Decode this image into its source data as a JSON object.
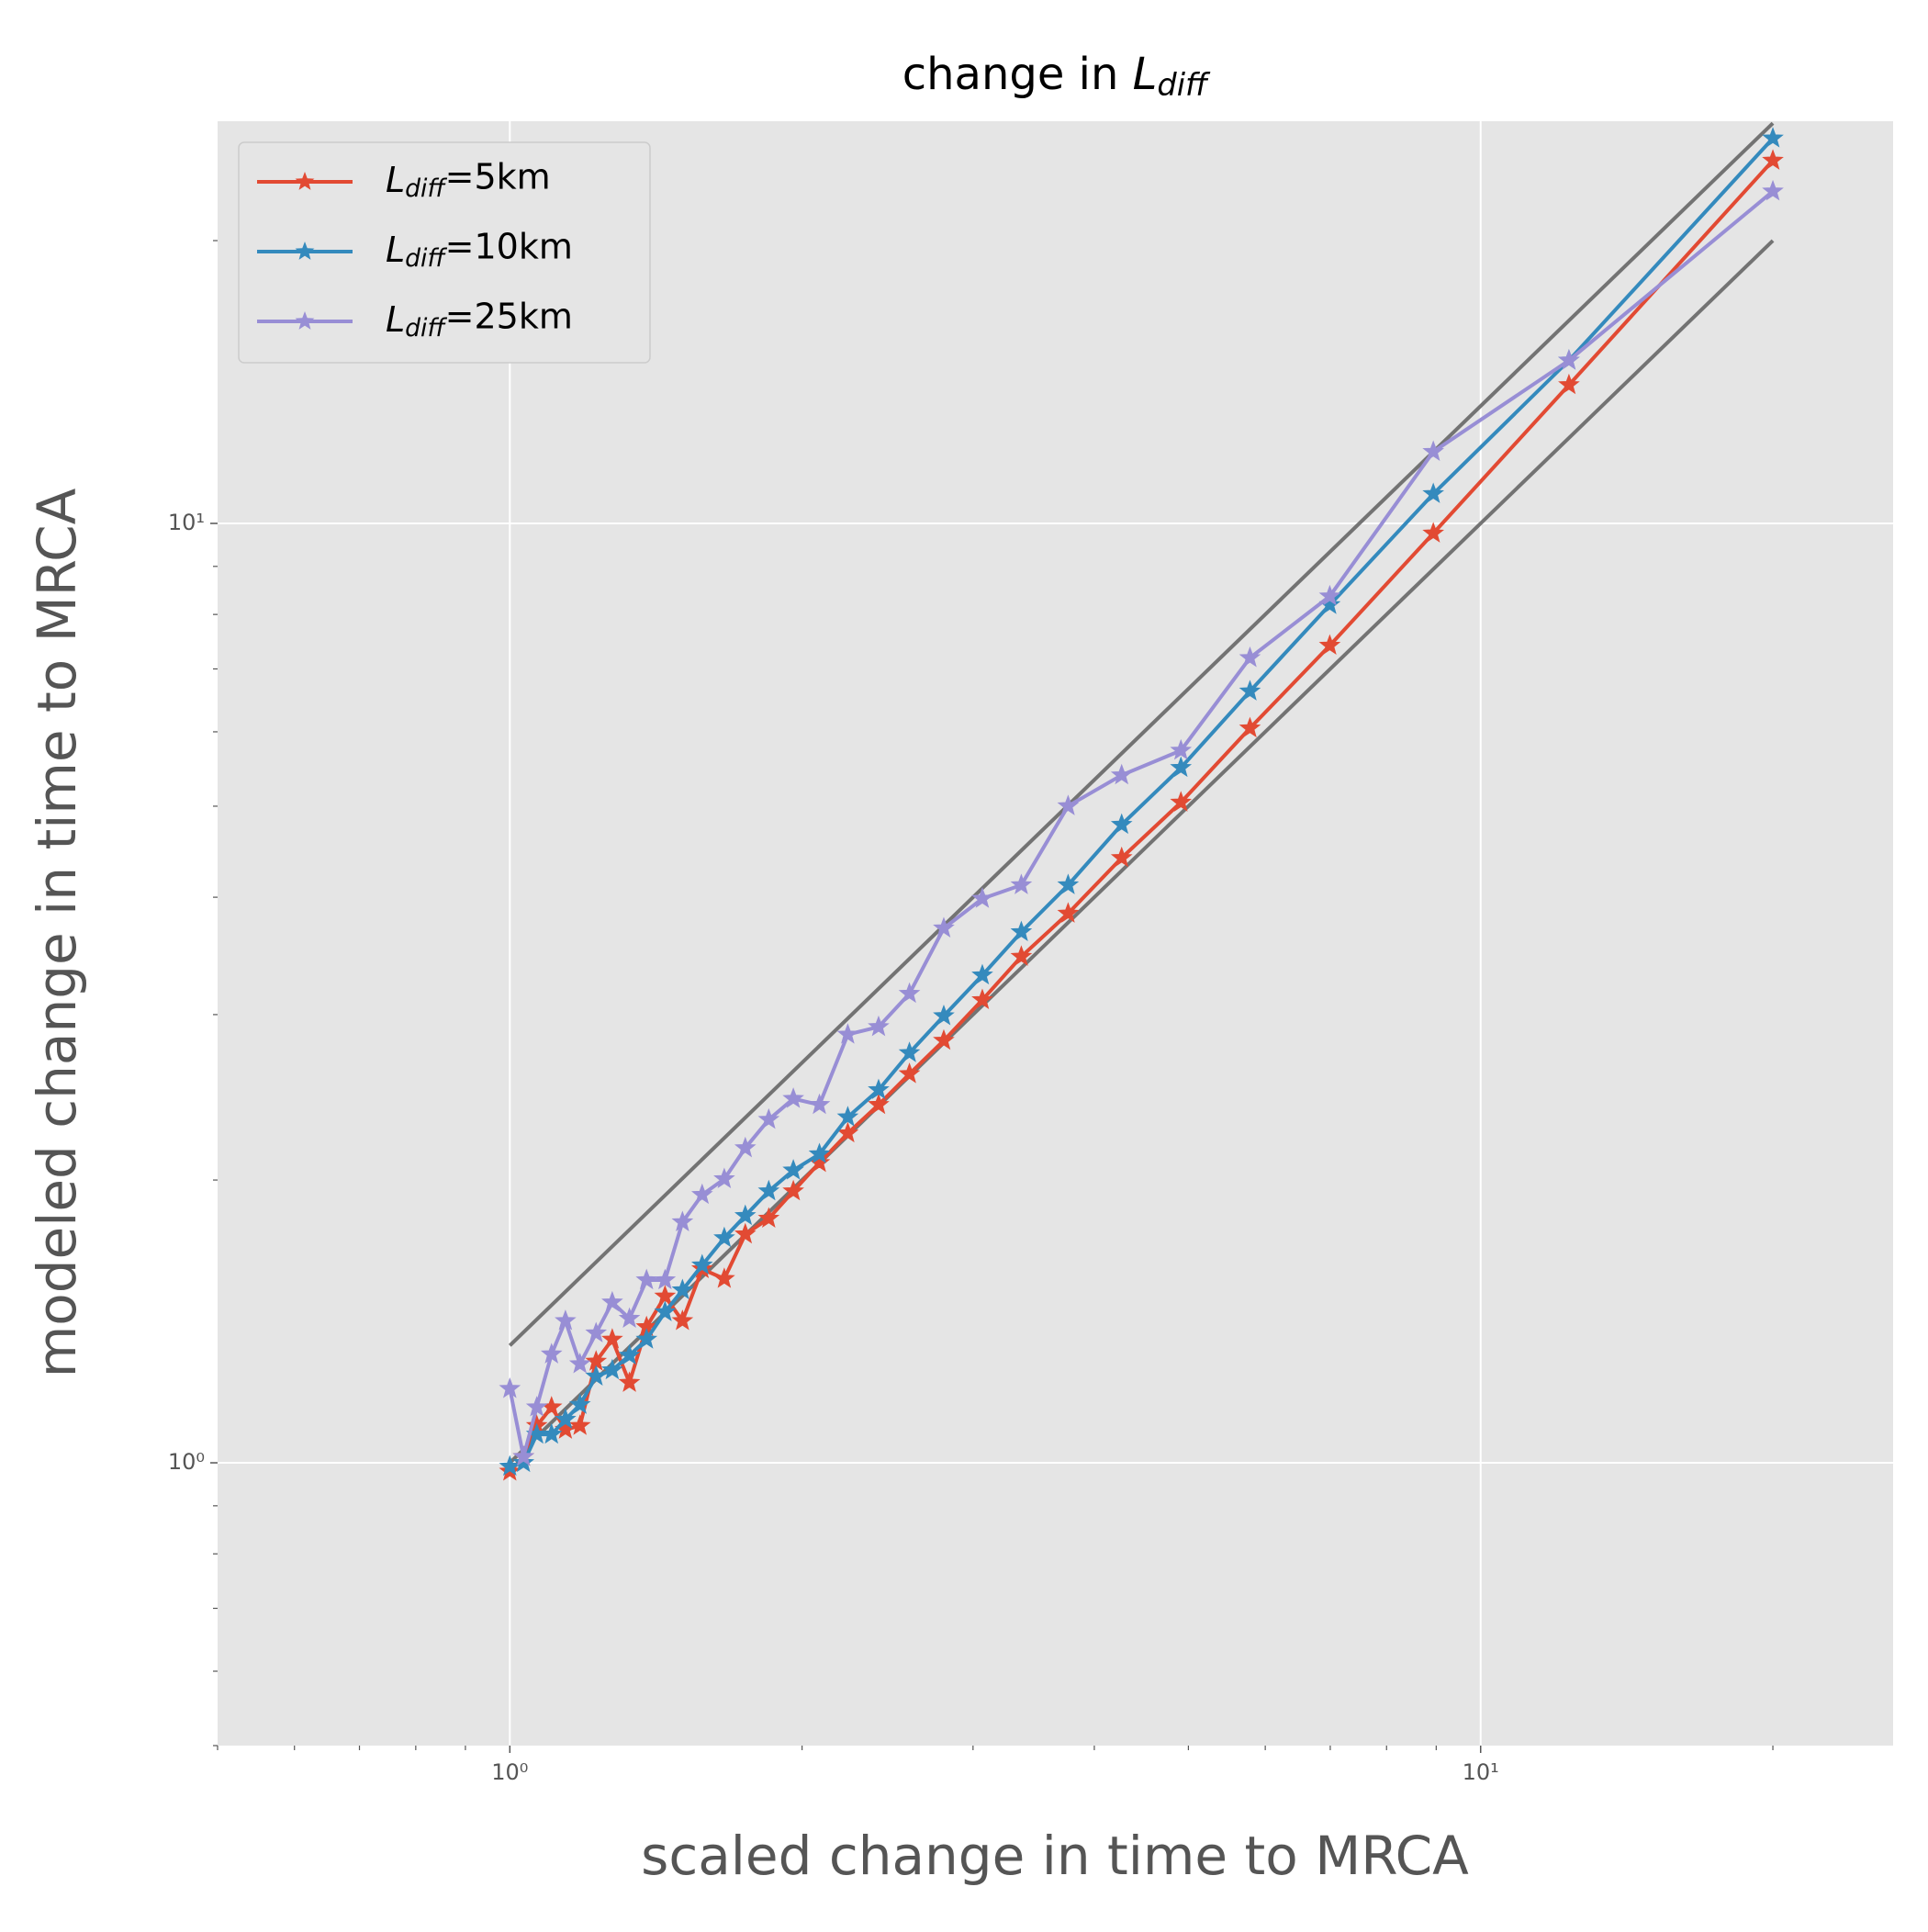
{
  "chart_data": {
    "type": "line",
    "title": "change in $L_{diff}$",
    "xlabel": "scaled change in time to MRCA",
    "ylabel": "modeled change in time to MRCA",
    "log_x": true,
    "log_y": true,
    "grid": true,
    "legend_loc": "upper left",
    "marker": "star",
    "xlim": [
      0.5,
      26.6
    ],
    "ylim": [
      0.5,
      26.8
    ],
    "xticks": [
      {
        "value": 1,
        "label": "10⁰"
      },
      {
        "value": 10,
        "label": "10¹"
      }
    ],
    "yticks": [
      {
        "value": 1,
        "label": "10⁰"
      },
      {
        "value": 10,
        "label": "10¹"
      }
    ],
    "xminorticks": [
      0.5,
      0.6,
      0.7,
      0.8,
      0.9,
      2,
      3,
      4,
      5,
      6,
      7,
      8,
      9,
      20
    ],
    "yminorticks": [
      0.5,
      0.6,
      0.7,
      0.8,
      0.9,
      2,
      3,
      4,
      5,
      6,
      7,
      8,
      9,
      20
    ],
    "x": [
      1.0,
      1.033,
      1.066,
      1.104,
      1.141,
      1.181,
      1.227,
      1.275,
      1.328,
      1.383,
      1.445,
      1.506,
      1.578,
      1.663,
      1.748,
      1.848,
      1.959,
      2.084,
      2.229,
      2.398,
      2.58,
      2.799,
      3.067,
      3.364,
      3.759,
      4.268,
      4.912,
      5.786,
      6.992,
      8.938,
      12.33,
      20.0
    ],
    "series": [
      {
        "name": "$L_{diff}$=5km",
        "color": "#E24A33",
        "values": [
          0.979,
          1.015,
          1.095,
          1.146,
          1.085,
          1.095,
          1.282,
          1.353,
          1.217,
          1.395,
          1.504,
          1.416,
          1.608,
          1.57,
          1.751,
          1.82,
          1.946,
          2.086,
          2.243,
          2.405,
          2.594,
          2.815,
          3.11,
          3.458,
          3.844,
          4.405,
          5.047,
          6.053,
          7.413,
          9.76,
          14.04,
          24.34
        ]
      },
      {
        "name": "$L_{diff}$=10km",
        "color": "#348ABD",
        "values": [
          0.991,
          1.0,
          1.072,
          1.072,
          1.112,
          1.153,
          1.236,
          1.255,
          1.301,
          1.353,
          1.447,
          1.527,
          1.623,
          1.735,
          1.832,
          1.946,
          2.048,
          2.131,
          2.333,
          2.494,
          2.731,
          2.99,
          3.304,
          3.673,
          4.121,
          4.779,
          5.494,
          6.627,
          8.19,
          10.75,
          14.91,
          25.7
        ]
      },
      {
        "name": "$L_{diff}$=25km",
        "color": "#988ED5",
        "values": [
          1.199,
          1.015,
          1.146,
          1.305,
          1.416,
          1.274,
          1.374,
          1.482,
          1.424,
          1.565,
          1.565,
          1.804,
          1.929,
          2.005,
          2.163,
          2.319,
          2.441,
          2.405,
          2.857,
          2.911,
          3.158,
          3.707,
          3.986,
          4.121,
          5.002,
          5.395,
          5.731,
          7.192,
          8.365,
          11.92,
          14.91,
          22.57
        ]
      }
    ],
    "reference_lines": [
      {
        "color": "#666666",
        "x": [
          1,
          20
        ],
        "y": [
          1.333,
          26.67
        ]
      },
      {
        "color": "#666666",
        "x": [
          1,
          20
        ],
        "y": [
          1,
          20
        ]
      }
    ]
  }
}
